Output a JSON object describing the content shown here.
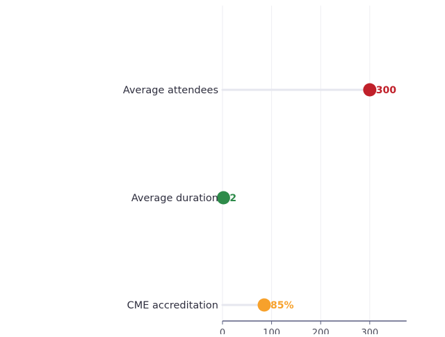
{
  "chart_data": {
    "type": "lollipop",
    "orientation": "horizontal",
    "categories": [
      "Average attendees",
      "Average duration",
      "CME accreditation"
    ],
    "values": [
      300,
      2,
      85
    ],
    "value_labels": [
      "300",
      "2",
      "85%"
    ],
    "colors": [
      "#c0202a",
      "#2e8b4a",
      "#f7a12b"
    ],
    "x_ticks": [
      0,
      100,
      200,
      300
    ],
    "xlim": [
      0,
      375
    ],
    "grid": "vertical",
    "legend": "none",
    "title": "",
    "xlabel": "",
    "ylabel": ""
  }
}
